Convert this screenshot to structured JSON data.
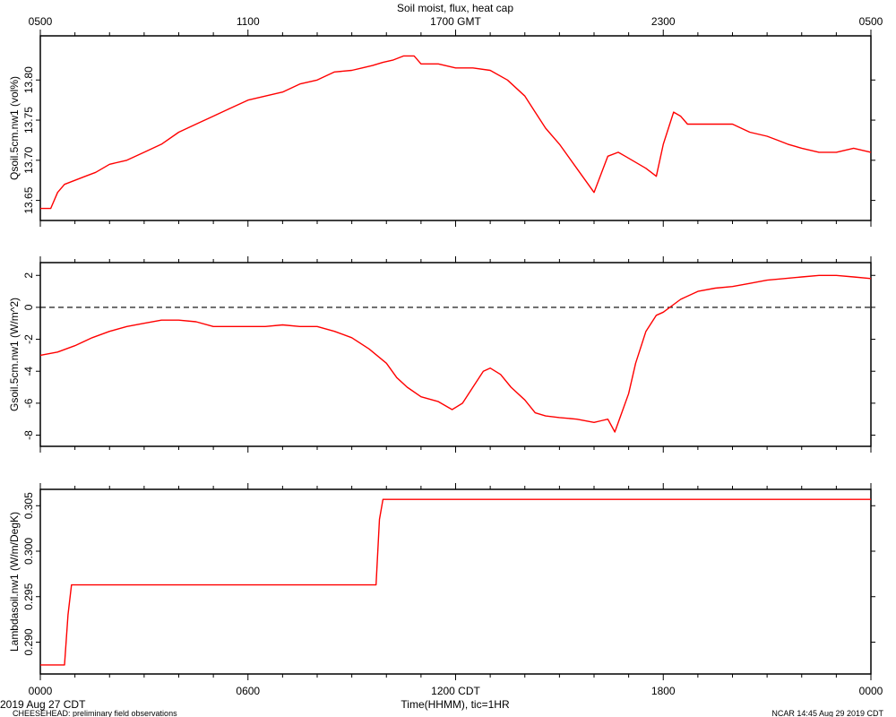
{
  "title": "Soil moist, flux, heat cap",
  "top_axis": {
    "tick_labels": [
      "0500",
      "1100",
      "1700 GMT",
      "2300",
      "0500"
    ]
  },
  "bottom_axis": {
    "tick_labels": [
      "0000",
      "0600",
      "1200 CDT",
      "1800",
      "0000"
    ],
    "xlabel": "Time(HHMM), tic=1HR",
    "date_label": "2019 Aug 27 CDT"
  },
  "footer": {
    "left": "CHEESEHEAD: preliminary field observations",
    "right": "NCAR 14:45 Aug 29 2019 CDT"
  },
  "chart_data": [
    {
      "type": "line",
      "ylabel": "Qsoil.5cm.nw1 (vol%)",
      "ylim": [
        13.625,
        13.855
      ],
      "yticks": [
        "13.65",
        "13.70",
        "13.75",
        "13.80"
      ],
      "series": [
        {
          "color": "#ff0000",
          "x": [
            0,
            0.3,
            0.5,
            0.7,
            1.0,
            1.3,
            1.6,
            2.0,
            2.5,
            3.0,
            3.5,
            4.0,
            4.5,
            5.0,
            5.5,
            6.0,
            6.5,
            7.0,
            7.5,
            8.0,
            8.5,
            9.0,
            9.3,
            9.6,
            9.9,
            10.2,
            10.5,
            10.8,
            11.0,
            11.5,
            12.0,
            12.5,
            13.0,
            13.5,
            14.0,
            14.3,
            14.6,
            15.0,
            15.5,
            16.0,
            16.4,
            16.7,
            16.9,
            17.1,
            17.5,
            17.8,
            18.0,
            18.3,
            18.5,
            18.7,
            19.0,
            19.5,
            20.0,
            20.5,
            21.0,
            21.3,
            21.6,
            22.0,
            22.5,
            23.0,
            23.5,
            24.0
          ],
          "y": [
            13.64,
            13.64,
            13.66,
            13.67,
            13.675,
            13.68,
            13.685,
            13.695,
            13.7,
            13.71,
            13.72,
            13.735,
            13.745,
            13.755,
            13.765,
            13.775,
            13.78,
            13.785,
            13.795,
            13.8,
            13.81,
            13.812,
            13.815,
            13.818,
            13.822,
            13.825,
            13.83,
            13.83,
            13.82,
            13.82,
            13.815,
            13.815,
            13.812,
            13.8,
            13.78,
            13.76,
            13.74,
            13.72,
            13.69,
            13.66,
            13.705,
            13.71,
            13.705,
            13.7,
            13.69,
            13.68,
            13.72,
            13.76,
            13.755,
            13.745,
            13.745,
            13.745,
            13.745,
            13.735,
            13.73,
            13.725,
            13.72,
            13.715,
            13.71,
            13.71,
            13.715,
            13.71
          ]
        }
      ]
    },
    {
      "type": "line",
      "ylabel": "Gsoil.5cm.nw1 (W/m^2)",
      "ylim": [
        -8.7,
        2.8
      ],
      "yticks": [
        "2",
        "0",
        "-2",
        "-4",
        "-6",
        "-8"
      ],
      "zero_line": true,
      "series": [
        {
          "color": "#ff0000",
          "x": [
            0,
            0.5,
            1.0,
            1.5,
            2.0,
            2.5,
            3.0,
            3.5,
            4.0,
            4.5,
            5.0,
            5.5,
            6.0,
            6.5,
            7.0,
            7.5,
            8.0,
            8.5,
            9.0,
            9.5,
            10.0,
            10.3,
            10.6,
            11.0,
            11.5,
            11.9,
            12.2,
            12.5,
            12.8,
            13.0,
            13.3,
            13.6,
            14.0,
            14.3,
            14.6,
            15.0,
            15.5,
            16.0,
            16.2,
            16.4,
            16.6,
            16.8,
            17.0,
            17.2,
            17.5,
            17.8,
            18.0,
            18.5,
            19.0,
            19.5,
            20.0,
            20.5,
            21.0,
            21.5,
            22.0,
            22.5,
            23.0,
            23.5,
            24.0
          ],
          "y": [
            -3.0,
            -2.8,
            -2.4,
            -1.9,
            -1.5,
            -1.2,
            -1.0,
            -0.8,
            -0.8,
            -0.9,
            -1.2,
            -1.2,
            -1.2,
            -1.2,
            -1.1,
            -1.2,
            -1.2,
            -1.5,
            -1.9,
            -2.6,
            -3.5,
            -4.4,
            -5.0,
            -5.6,
            -5.9,
            -6.4,
            -6.0,
            -5.0,
            -4.0,
            -3.8,
            -4.2,
            -5.0,
            -5.8,
            -6.6,
            -6.8,
            -6.9,
            -7.0,
            -7.2,
            -7.1,
            -7.0,
            -7.8,
            -6.6,
            -5.4,
            -3.5,
            -1.5,
            -0.5,
            -0.3,
            0.5,
            1.0,
            1.2,
            1.3,
            1.5,
            1.7,
            1.8,
            1.9,
            2.0,
            2.0,
            1.9,
            1.8
          ]
        }
      ]
    },
    {
      "type": "line",
      "ylabel": "Lambdasoil.nw1 (W/m/DegK)",
      "ylim": [
        0.2865,
        0.3068
      ],
      "yticks": [
        "0.290",
        "0.295",
        "0.300",
        "0.305"
      ],
      "series": [
        {
          "color": "#ff0000",
          "x": [
            0,
            0.7,
            0.8,
            0.9,
            9.7,
            9.8,
            9.9,
            24.0
          ],
          "y": [
            0.2875,
            0.2875,
            0.293,
            0.2963,
            0.2963,
            0.3035,
            0.3057,
            0.3057
          ]
        }
      ]
    }
  ]
}
